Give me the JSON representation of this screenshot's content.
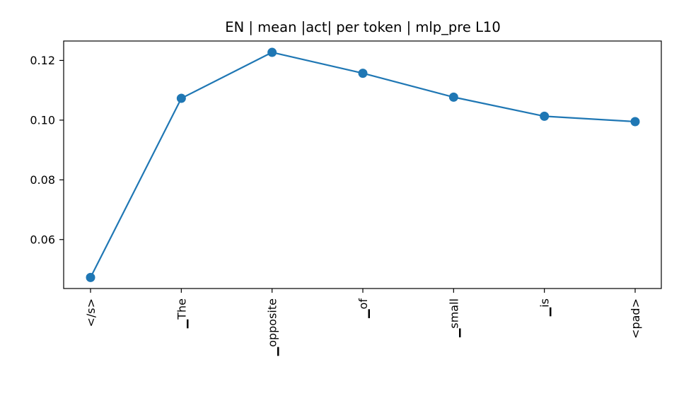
{
  "chart_data": {
    "type": "line",
    "title": "EN | mean |act| per token | mlp_pre L10",
    "xlabel": "",
    "ylabel": "",
    "categories": [
      "</s>",
      "▁The",
      "▁opposite",
      "▁of",
      "▁small",
      "▁is",
      "<pad>"
    ],
    "series": [
      {
        "values": [
          0.0473,
          0.1073,
          0.1227,
          0.1157,
          0.1077,
          0.1013,
          0.0995
        ]
      }
    ],
    "ylim": [
      0.0436,
      0.1265
    ],
    "yticks": [
      0.06,
      0.08,
      0.1,
      0.12
    ],
    "ytick_labels": [
      "0.06",
      "0.08",
      "0.10",
      "0.12"
    ],
    "grid": false,
    "legend": "none",
    "colors": {
      "line": "#1f77b4",
      "axes": "#000000"
    }
  }
}
